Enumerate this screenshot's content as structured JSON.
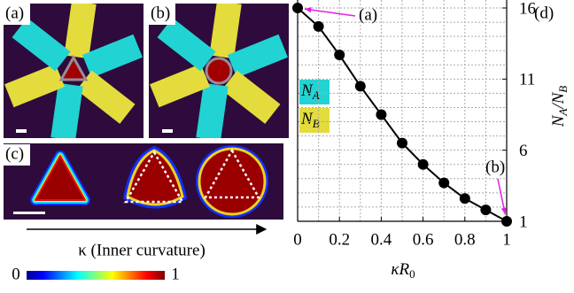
{
  "panels": {
    "a": "(a)",
    "b": "(b)",
    "c": "(c)"
  },
  "curvature_axis": "κ (Inner curvature)",
  "colorbar": {
    "ticks": [
      0,
      1
    ]
  },
  "legend": [
    {
      "symbol": "N",
      "subscript": "A",
      "color": "#22d3d3"
    },
    {
      "symbol": "N",
      "subscript": "B",
      "color": "#e3dc3c"
    }
  ],
  "chart_data": {
    "type": "line",
    "panel_label": "(d)",
    "x": [
      0,
      0.1,
      0.2,
      0.3,
      0.4,
      0.5,
      0.6,
      0.7,
      0.8,
      0.9,
      1
    ],
    "values": [
      16,
      14.7,
      12.7,
      10.5,
      8.5,
      6.5,
      5.0,
      3.7,
      2.6,
      1.8,
      1
    ],
    "color": "#000000",
    "xlim": [
      0,
      1
    ],
    "ylim": [
      1,
      16
    ],
    "xticks": [
      0,
      0.2,
      0.4,
      0.6,
      0.8,
      1
    ],
    "yticks": [
      1,
      6,
      11,
      16
    ],
    "grid": true,
    "xgrid": [
      0.1,
      0.2,
      0.3,
      0.4,
      0.5,
      0.6,
      0.7,
      0.8,
      0.9
    ],
    "ygrid": [
      2,
      3,
      4,
      5,
      6,
      7,
      8,
      9,
      10,
      11,
      12,
      13,
      14,
      15,
      16
    ],
    "xlabel": {
      "text": "κR",
      "subscript": "0"
    },
    "ylabel": [
      {
        "text": "N",
        "subscript": "A"
      },
      {
        "text": "/N",
        "subscript": "B"
      }
    ],
    "annotations": [
      {
        "text": "(a)",
        "point": 0,
        "color": "#e020e0"
      },
      {
        "text": "(b)",
        "point": 10,
        "color": "#e020e0"
      }
    ]
  }
}
